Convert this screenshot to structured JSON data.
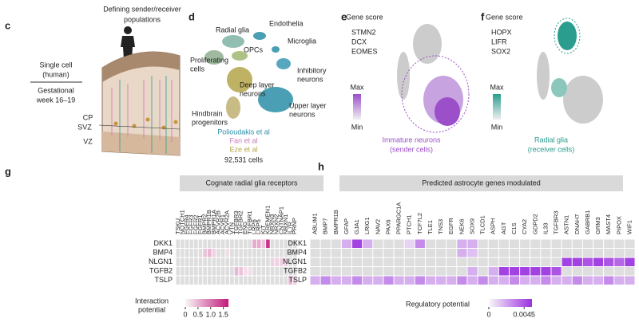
{
  "panel_c": {
    "letter": "c",
    "title_lines": [
      "Defining sender/receiver",
      "populations"
    ],
    "left_lines": [
      "Single cell",
      "(human)",
      "Gestational",
      "week 16–19"
    ],
    "zones": [
      "CP",
      "SVZ",
      "VZ"
    ]
  },
  "panel_d": {
    "letter": "d",
    "clusters": [
      [
        "Radial glia"
      ],
      [
        "Endothelia"
      ],
      [
        "Microglia"
      ],
      [
        "OPCs"
      ],
      [
        "Proliferating",
        "cells"
      ],
      [
        "Inhibitory",
        "neurons"
      ],
      [
        "Deep layer",
        "neurons"
      ],
      [
        "Upper layer",
        "neurons"
      ],
      [
        "Hindbrain",
        "progenitors"
      ]
    ],
    "datasets": [
      {
        "name": "Polioudakis et al",
        "color": "#2b8fa8"
      },
      {
        "name": "Fan et al",
        "color": "#c87ab8"
      },
      {
        "name": "Eze et al",
        "color": "#b5a54a"
      }
    ],
    "cell_count": "92,531 cells"
  },
  "panel_e": {
    "letter": "e",
    "score_title": "Gene score",
    "genes": [
      "STMN2",
      "DCX",
      "EOMES"
    ],
    "max": "Max",
    "min": "Min",
    "caption": [
      "Immature neurons",
      "(sender cells)"
    ],
    "color": "#9b4fc9"
  },
  "panel_f": {
    "letter": "f",
    "score_title": "Gene score",
    "genes": [
      "HOPX",
      "LIFR",
      "SOX2"
    ],
    "max": "Max",
    "min": "Min",
    "caption": [
      "Radial glia",
      "(receiver cells)"
    ],
    "color": "#2a9d8f"
  },
  "heatmaps": [
    {
      "letter": "g",
      "title": "Cognate radial glia receptors",
      "columns": [
        "TSKU",
        "NOTCH1",
        "FGFR4",
        "FGFR3",
        "FGFR2",
        "FGFR1",
        "BMPR2",
        "BMPR1B",
        "BMPR1A",
        "ACVR2B",
        "ACVR1",
        "ACVR2A",
        "VTN",
        "TGFBR3",
        "TGFBR2",
        "ENG",
        "TGFBR1",
        "LRP6",
        "LRP5",
        "KIT",
        "KREMEN1",
        "NRXN3",
        "NRXN2",
        "CNTNAP1",
        "NRXN1",
        "IL7R",
        "PRNP"
      ],
      "rows": [
        "DKK1",
        "BMP4",
        "NLGN1",
        "TGFB2",
        "TSLP"
      ],
      "values": [
        [
          0,
          0,
          0,
          0,
          0,
          0,
          0,
          0,
          0,
          0,
          0,
          0,
          0,
          0,
          0,
          0,
          0,
          0.6,
          0.6,
          0.4,
          1.5,
          0,
          0,
          0,
          0,
          0,
          0
        ],
        [
          0,
          0,
          0,
          0,
          0,
          0,
          0.4,
          0.5,
          0.3,
          0,
          0,
          0.2,
          0,
          0,
          0,
          0,
          0,
          0,
          0,
          0,
          0,
          0,
          0,
          0,
          0,
          0,
          0
        ],
        [
          0,
          0,
          0,
          0,
          0,
          0,
          0,
          0,
          0,
          0,
          0,
          0,
          0,
          0,
          0,
          0,
          0,
          0,
          0,
          0,
          0,
          0.3,
          0.3,
          0.3,
          0.3,
          0,
          0
        ],
        [
          0,
          0,
          0,
          0,
          0,
          0,
          0,
          0,
          0,
          0,
          0,
          0,
          0,
          0.5,
          0.4,
          0.2,
          0.2,
          0,
          0,
          0,
          0,
          0,
          0,
          0,
          0,
          0,
          0
        ],
        [
          0,
          0,
          0,
          0,
          0,
          0,
          0,
          0,
          0,
          0,
          0,
          0,
          0,
          0,
          0,
          0,
          0,
          0,
          0,
          0,
          0,
          0,
          0,
          0,
          0,
          0.5,
          0.3
        ]
      ],
      "color": "#c21a7a",
      "colorbar_label": [
        "Interaction",
        "potential"
      ],
      "lim": [
        0,
        1.7
      ],
      "ticks": [
        0,
        0.5,
        {
          "value": 1,
          "label": "1.0"
        },
        1.5
      ]
    },
    {
      "letter": "h",
      "title": "Predicted astrocyte genes modulated",
      "columns": [
        "ABLIM1",
        "BMP7",
        "BMPR1B",
        "GFAP",
        "GJA1",
        "LRIG1",
        "NAV2",
        "PAX6",
        "PPARGC1A",
        "PTCH1",
        "TCF7L2",
        "TLE1",
        "TNS3",
        "EGFR",
        "NEK6",
        "SOX9",
        "TLCD1",
        "ASPH",
        "AGT",
        "C1S",
        "CYA2",
        "GDPD2",
        "IL33",
        "TGFBR3",
        "ASTN1",
        "DNAH7",
        "GABRB1",
        "GRM3",
        "MAST4",
        "PIPOX",
        "WIF1"
      ],
      "rows": [
        "DKK1",
        "BMP4",
        "NLGN1",
        "TGFB2",
        "TSLP"
      ],
      "values": [
        [
          0,
          0,
          0,
          0.002,
          0.005,
          0.002,
          0,
          0,
          0,
          0.001,
          0.003,
          0,
          0,
          0,
          0.002,
          0.002,
          0,
          0,
          0,
          0,
          0,
          0,
          0,
          0,
          0,
          0,
          0,
          0,
          0,
          0,
          0
        ],
        [
          0,
          0,
          0,
          0,
          0,
          0,
          0,
          0,
          0,
          0,
          0,
          0,
          0,
          0,
          0.002,
          0.0015,
          0,
          0,
          0,
          0,
          0,
          0,
          0,
          0,
          0,
          0,
          0,
          0,
          0,
          0,
          0
        ],
        [
          0,
          0,
          0,
          0,
          0,
          0,
          0,
          0,
          0,
          0,
          0,
          0,
          0,
          0,
          0,
          0,
          0,
          0,
          0,
          0,
          0,
          0,
          0,
          0,
          0.005,
          0.005,
          0.0045,
          0.005,
          0.0045,
          0.004,
          0.005
        ],
        [
          0,
          0,
          0,
          0,
          0,
          0,
          0,
          0,
          0,
          0,
          0,
          0,
          0,
          0,
          0,
          0.002,
          0,
          0.002,
          0.005,
          0.005,
          0.005,
          0.005,
          0.005,
          0.0045,
          0,
          0,
          0,
          0,
          0,
          0,
          0
        ],
        [
          0.002,
          0.003,
          0.002,
          0.002,
          0.003,
          0.002,
          0.002,
          0.003,
          0.002,
          0.002,
          0.003,
          0.002,
          0.002,
          0.002,
          0.003,
          0.002,
          0.003,
          0.002,
          0.002,
          0.003,
          0.002,
          0.002,
          0.003,
          0.002,
          0.002,
          0.003,
          0.002,
          0.002,
          0.003,
          0.002,
          0.002
        ]
      ],
      "color": "#9b30e0",
      "colorbar_label": [
        "Regulatory potential"
      ],
      "lim": [
        0,
        0.0055
      ],
      "ticks": [
        0,
        0.0045
      ]
    }
  ]
}
